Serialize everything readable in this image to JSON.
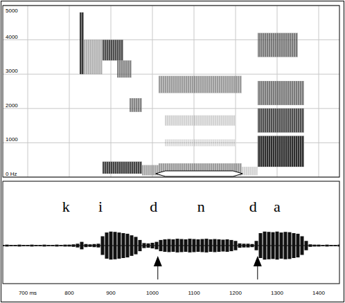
{
  "chart_data": {
    "type": "spectrogram",
    "xlim": [
      640,
      1450
    ],
    "xticks": [
      {
        "value": 700,
        "label": "700 ms"
      },
      800,
      900,
      1000,
      1100,
      1200,
      1300,
      1400
    ],
    "ylim": [
      0,
      5000
    ],
    "yticks": [
      {
        "value": 0,
        "label": "0 Hz"
      },
      1000,
      2000,
      3000,
      4000,
      5000
    ],
    "grid": true,
    "bands": [
      {
        "x0": 825,
        "x1": 835,
        "y0": 3000,
        "y1": 4800,
        "level": 0.9
      },
      {
        "x0": 835,
        "x1": 880,
        "y0": 3000,
        "y1": 4000,
        "level": 0.35
      },
      {
        "x0": 880,
        "x1": 975,
        "y0": 100,
        "y1": 450,
        "level": 0.85
      },
      {
        "x0": 880,
        "x1": 930,
        "y0": 3400,
        "y1": 4000,
        "level": 0.8
      },
      {
        "x0": 915,
        "x1": 950,
        "y0": 2900,
        "y1": 3400,
        "level": 0.55
      },
      {
        "x0": 945,
        "x1": 975,
        "y0": 1900,
        "y1": 2300,
        "level": 0.55
      },
      {
        "x0": 975,
        "x1": 1015,
        "y0": 50,
        "y1": 350,
        "level": 0.4
      },
      {
        "x0": 1015,
        "x1": 1215,
        "y0": 50,
        "y1": 400,
        "level": 0.45
      },
      {
        "x0": 1015,
        "x1": 1215,
        "y0": 2450,
        "y1": 2950,
        "level": 0.45
      },
      {
        "x0": 1030,
        "x1": 1200,
        "y0": 1500,
        "y1": 1800,
        "level": 0.2
      },
      {
        "x0": 1030,
        "x1": 1200,
        "y0": 900,
        "y1": 1100,
        "level": 0.15
      },
      {
        "x0": 1215,
        "x1": 1253,
        "y0": 50,
        "y1": 300,
        "level": 0.2
      },
      {
        "x0": 1253,
        "x1": 1365,
        "y0": 300,
        "y1": 1200,
        "level": 0.95
      },
      {
        "x0": 1253,
        "x1": 1365,
        "y0": 1300,
        "y1": 2000,
        "level": 0.8
      },
      {
        "x0": 1253,
        "x1": 1365,
        "y0": 2100,
        "y1": 2800,
        "level": 0.6
      },
      {
        "x0": 1253,
        "x1": 1350,
        "y0": 3500,
        "y1": 4200,
        "level": 0.6
      }
    ],
    "waveform": {
      "ylim": [
        -1,
        1
      ],
      "x": [
        640,
        650,
        660,
        670,
        680,
        690,
        700,
        710,
        720,
        730,
        740,
        750,
        760,
        770,
        780,
        790,
        800,
        810,
        820,
        830,
        840,
        850,
        860,
        870,
        880,
        890,
        900,
        910,
        920,
        930,
        940,
        950,
        960,
        970,
        980,
        990,
        1000,
        1010,
        1020,
        1030,
        1040,
        1050,
        1060,
        1070,
        1080,
        1090,
        1100,
        1110,
        1120,
        1130,
        1140,
        1150,
        1160,
        1170,
        1180,
        1190,
        1200,
        1210,
        1220,
        1230,
        1240,
        1250,
        1260,
        1270,
        1280,
        1290,
        1300,
        1310,
        1320,
        1330,
        1340,
        1350,
        1360,
        1370,
        1380,
        1390,
        1400,
        1410,
        1420,
        1430,
        1440,
        1450
      ],
      "values": [
        0.02,
        0.03,
        0.02,
        0.02,
        0.03,
        0.02,
        0.02,
        0.03,
        0.02,
        0.02,
        0.03,
        0.02,
        0.02,
        0.03,
        0.02,
        0.03,
        0.03,
        0.04,
        0.06,
        0.12,
        0.05,
        0.04,
        0.05,
        0.06,
        0.3,
        0.42,
        0.45,
        0.44,
        0.42,
        0.4,
        0.38,
        0.33,
        0.28,
        0.18,
        0.08,
        0.07,
        0.09,
        0.12,
        0.18,
        0.2,
        0.21,
        0.2,
        0.22,
        0.21,
        0.2,
        0.22,
        0.21,
        0.2,
        0.21,
        0.22,
        0.2,
        0.21,
        0.2,
        0.19,
        0.2,
        0.18,
        0.15,
        0.07,
        0.06,
        0.06,
        0.05,
        0.15,
        0.4,
        0.45,
        0.44,
        0.43,
        0.45,
        0.42,
        0.44,
        0.43,
        0.4,
        0.38,
        0.3,
        0.15,
        0.04,
        0.03,
        0.03,
        0.02,
        0.03,
        0.02,
        0.02,
        0.03
      ]
    },
    "segments": [
      {
        "label": "k",
        "x": 792
      },
      {
        "label": "i",
        "x": 875
      },
      {
        "label": "d",
        "x": 1003
      },
      {
        "label": "n",
        "x": 1117
      },
      {
        "label": "d",
        "x": 1242
      },
      {
        "label": "a",
        "x": 1300
      }
    ],
    "arrows": [
      1013,
      1253
    ],
    "bracket": [
      1008,
      1217
    ]
  }
}
